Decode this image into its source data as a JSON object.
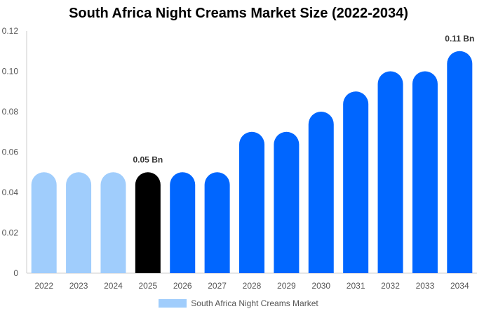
{
  "chart_data": {
    "type": "bar",
    "title": "South Africa Night Creams Market Size (2022-2034)",
    "categories": [
      "2022",
      "2023",
      "2024",
      "2025",
      "2026",
      "2027",
      "2028",
      "2029",
      "2030",
      "2031",
      "2032",
      "2033",
      "2034"
    ],
    "series": [
      {
        "name": "South Africa Night Creams Market",
        "values": [
          0.05,
          0.05,
          0.05,
          0.05,
          0.05,
          0.05,
          0.07,
          0.07,
          0.08,
          0.09,
          0.1,
          0.1,
          0.11
        ]
      }
    ],
    "ylim": [
      0,
      0.12
    ],
    "yticks": [
      "0",
      "0.02",
      "0.04",
      "0.06",
      "0.08",
      "0.10",
      "0.12"
    ],
    "data_labels": [
      {
        "category": "2025",
        "text": "0.05 Bn"
      },
      {
        "category": "2034",
        "text": "0.11 Bn"
      }
    ],
    "colors": {
      "historical": "#a0cdfc",
      "current": "#000000",
      "forecast": "#0066ff",
      "gridline": "#dddddd",
      "axis": "#cccccc"
    },
    "bar_color_groups": [
      "historical",
      "historical",
      "historical",
      "current",
      "forecast",
      "forecast",
      "forecast",
      "forecast",
      "forecast",
      "forecast",
      "forecast",
      "forecast",
      "forecast"
    ],
    "legend": {
      "label": "South Africa Night Creams Market",
      "color": "#a0cdfc",
      "placement": "bottom-center"
    },
    "grid": false
  }
}
